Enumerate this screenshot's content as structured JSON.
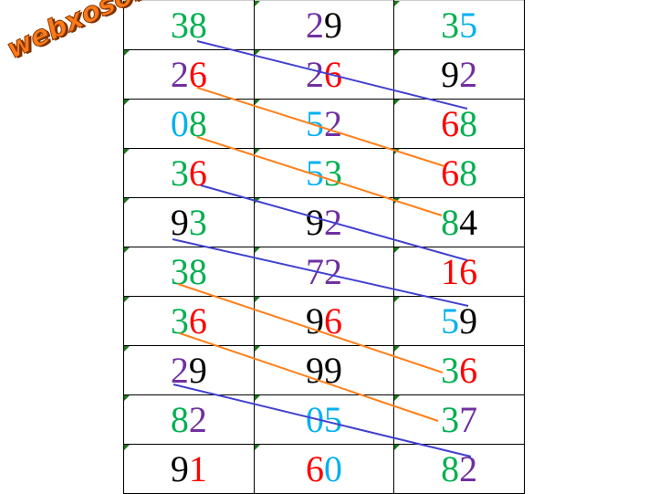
{
  "watermark": "webxoso.net",
  "colors": {
    "G": "#00b050",
    "P": "#7030a0",
    "R": "#ff0000",
    "B": "#00b0f0",
    "K": "#000000",
    "blue_line": "#4040d0",
    "orange_line": "#ff7f1a"
  },
  "rows": [
    [
      {
        "d": "38",
        "c": "GG"
      },
      {
        "d": "29",
        "c": "PK"
      },
      {
        "d": "35",
        "c": "GB"
      }
    ],
    [
      {
        "d": "26",
        "c": "PR"
      },
      {
        "d": "26",
        "c": "PR"
      },
      {
        "d": "92",
        "c": "KP"
      }
    ],
    [
      {
        "d": "08",
        "c": "BG"
      },
      {
        "d": "52",
        "c": "BP"
      },
      {
        "d": "68",
        "c": "RG"
      }
    ],
    [
      {
        "d": "36",
        "c": "GR"
      },
      {
        "d": "53",
        "c": "BG"
      },
      {
        "d": "68",
        "c": "RG"
      }
    ],
    [
      {
        "d": "93",
        "c": "KG"
      },
      {
        "d": "92",
        "c": "KP"
      },
      {
        "d": "84",
        "c": "GK"
      }
    ],
    [
      {
        "d": "38",
        "c": "GG"
      },
      {
        "d": "72",
        "c": "PP"
      },
      {
        "d": "16",
        "c": "RR"
      }
    ],
    [
      {
        "d": "36",
        "c": "GR"
      },
      {
        "d": "96",
        "c": "KR"
      },
      {
        "d": "59",
        "c": "BK"
      }
    ],
    [
      {
        "d": "29",
        "c": "PK"
      },
      {
        "d": "99",
        "c": "KK"
      },
      {
        "d": "36",
        "c": "GR"
      }
    ],
    [
      {
        "d": "82",
        "c": "GP"
      },
      {
        "d": "05",
        "c": "BB"
      },
      {
        "d": "37",
        "c": "GP"
      }
    ],
    [
      {
        "d": "91",
        "c": "KR"
      },
      {
        "d": "60",
        "c": "RB"
      },
      {
        "d": "82",
        "c": "GP"
      }
    ]
  ]
}
